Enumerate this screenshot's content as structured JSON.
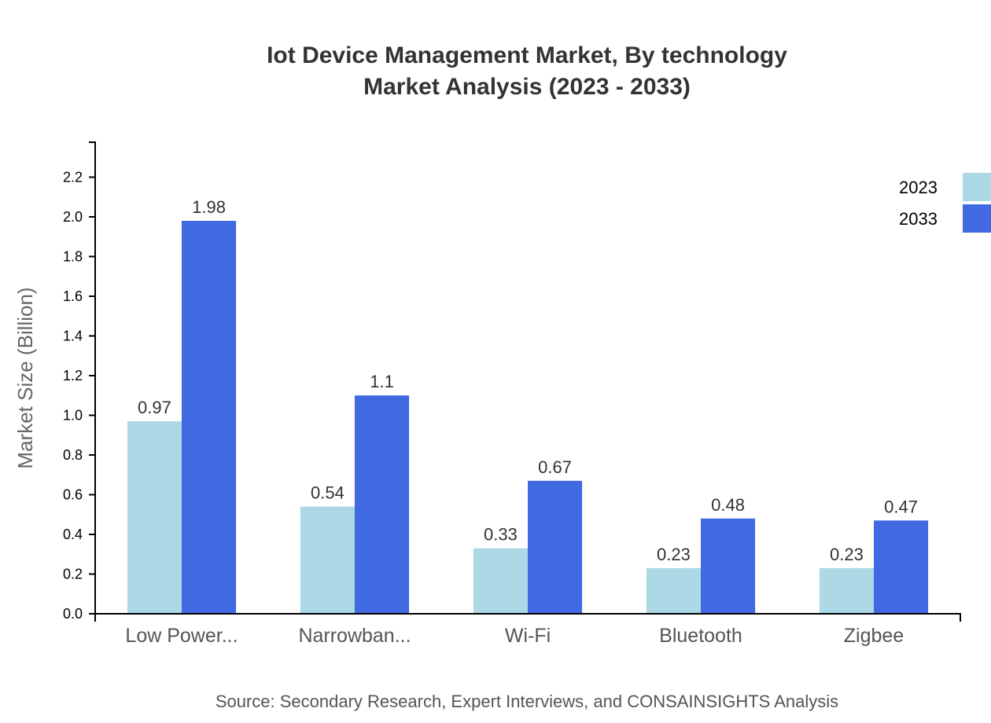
{
  "chart_data": {
    "type": "bar",
    "title": "Iot Device Management Market, By technology",
    "subtitle": "Market Analysis (2023 - 2033)",
    "xlabel": "",
    "ylabel": "Market Size (Billion)",
    "categories": [
      "Low Power...",
      "Narrowban...",
      "Wi-Fi",
      "Bluetooth",
      "Zigbee"
    ],
    "series": [
      {
        "name": "2023",
        "color": "#add8e6",
        "values": [
          0.97,
          0.54,
          0.33,
          0.23,
          0.23
        ],
        "labels": [
          "0.97",
          "0.54",
          "0.33",
          "0.23",
          "0.23"
        ]
      },
      {
        "name": "2033",
        "color": "#4169e1",
        "values": [
          1.98,
          1.1,
          0.67,
          0.48,
          0.47
        ],
        "labels": [
          "1.98",
          "1.1",
          "0.67",
          "0.48",
          "0.47"
        ]
      }
    ],
    "ylim": [
      0,
      2.376
    ],
    "yticks": [
      "0.0",
      "0.2",
      "0.4",
      "0.6",
      "0.8",
      "1.0",
      "1.2",
      "1.4",
      "1.6",
      "1.8",
      "2.0",
      "2.2"
    ],
    "grid": false,
    "legend": "top-right",
    "source": "Source: Secondary Research, Expert Interviews, and CONSAINSIGHTS Analysis"
  }
}
